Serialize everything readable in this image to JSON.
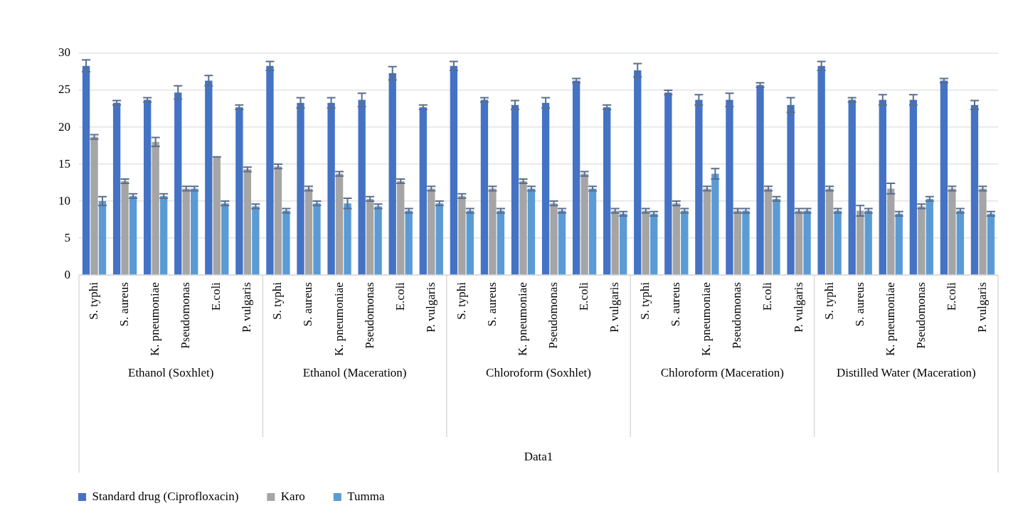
{
  "chart_data": {
    "type": "bar",
    "categories": [
      "S. typhi",
      "S. aureus",
      "K. pneumoniae",
      "Pseudomonas",
      "E.coli",
      "P. vulgaris",
      "S. typhi",
      "S. aureus",
      "K. pneumoniae",
      "Pseudomonas",
      "E.coli",
      "P. vulgaris",
      "S. typhi",
      "S. aureus",
      "K. pneumoniae",
      "Pseudomonas",
      "E.coli",
      "P. vulgaris",
      "S. typhi",
      "S. aureus",
      "K. pneumoniae",
      "Pseudomonas",
      "E.coli",
      "P. vulgaris",
      "S. typhi",
      "S. aureus",
      "K. pneumoniae",
      "Pseudomonas",
      "E.coli",
      "P. vulgaris"
    ],
    "annotations": [
      "Ethanol (Soxhlet)",
      "Ethanol (Maceration)",
      "Chloroform (Soxhlet)",
      "Chloroform (Maceration)",
      "Distilled Water (Maceration)",
      "Data1"
    ],
    "series": [
      {
        "name": "Standard drug (Ciprofloxacin)",
        "color": "#4472c4",
        "values": [
          28.3,
          23.3,
          23.7,
          24.7,
          26.3,
          22.7,
          28.3,
          23.3,
          23.3,
          23.7,
          27.3,
          22.7,
          28.3,
          23.7,
          23.0,
          23.3,
          26.3,
          22.7,
          27.7,
          24.7,
          23.7,
          23.7,
          25.7,
          23.0,
          28.3,
          23.7,
          23.7,
          23.7,
          26.3,
          23.0
        ],
        "errors": [
          0.8,
          0.3,
          0.3,
          0.9,
          0.7,
          0.3,
          0.6,
          0.7,
          0.7,
          0.9,
          0.9,
          0.3,
          0.6,
          0.3,
          0.6,
          0.7,
          0.3,
          0.3,
          0.9,
          0.3,
          0.7,
          0.9,
          0.3,
          1.0,
          0.6,
          0.3,
          0.7,
          0.7,
          0.3,
          0.6
        ]
      },
      {
        "name": "Karo",
        "color": "#a5a5a5",
        "values": [
          18.7,
          12.7,
          18.0,
          11.7,
          16.0,
          14.3,
          14.7,
          11.7,
          13.7,
          10.3,
          12.7,
          11.7,
          10.7,
          11.7,
          12.7,
          9.7,
          13.7,
          8.7,
          8.7,
          9.7,
          11.7,
          8.7,
          11.7,
          8.7,
          11.7,
          8.7,
          11.7,
          9.3,
          11.7,
          11.7
        ],
        "errors": [
          0.3,
          0.3,
          0.6,
          0.3,
          0,
          0.3,
          0.3,
          0.3,
          0.3,
          0.3,
          0.3,
          0.3,
          0.3,
          0.3,
          0.3,
          0.3,
          0.3,
          0.3,
          0.3,
          0.3,
          0.3,
          0.3,
          0.3,
          0.3,
          0.3,
          0.7,
          0.7,
          0.3,
          0.3,
          0.3
        ]
      },
      {
        "name": "Tumma",
        "color": "#5b9bd5",
        "values": [
          10.0,
          10.7,
          10.7,
          11.7,
          9.7,
          9.3,
          8.7,
          9.7,
          9.7,
          9.3,
          8.7,
          9.7,
          8.7,
          8.7,
          11.7,
          8.7,
          11.7,
          8.3,
          8.3,
          8.7,
          13.7,
          8.7,
          10.3,
          8.7,
          8.7,
          8.7,
          8.3,
          10.3,
          8.7,
          8.3
        ],
        "errors": [
          0.6,
          0.3,
          0.3,
          0.3,
          0.3,
          0.3,
          0.3,
          0.3,
          0.7,
          0.3,
          0.3,
          0.3,
          0.3,
          0.3,
          0.3,
          0.3,
          0.3,
          0.3,
          0.3,
          0.3,
          0.7,
          0.3,
          0.3,
          0.3,
          0.3,
          0.3,
          0.3,
          0.3,
          0.3,
          0.3
        ]
      }
    ],
    "ylim": [
      0,
      30
    ],
    "yticks": [
      0,
      5,
      10,
      15,
      20,
      25,
      30
    ],
    "grid": "y",
    "legend": "bottom"
  }
}
